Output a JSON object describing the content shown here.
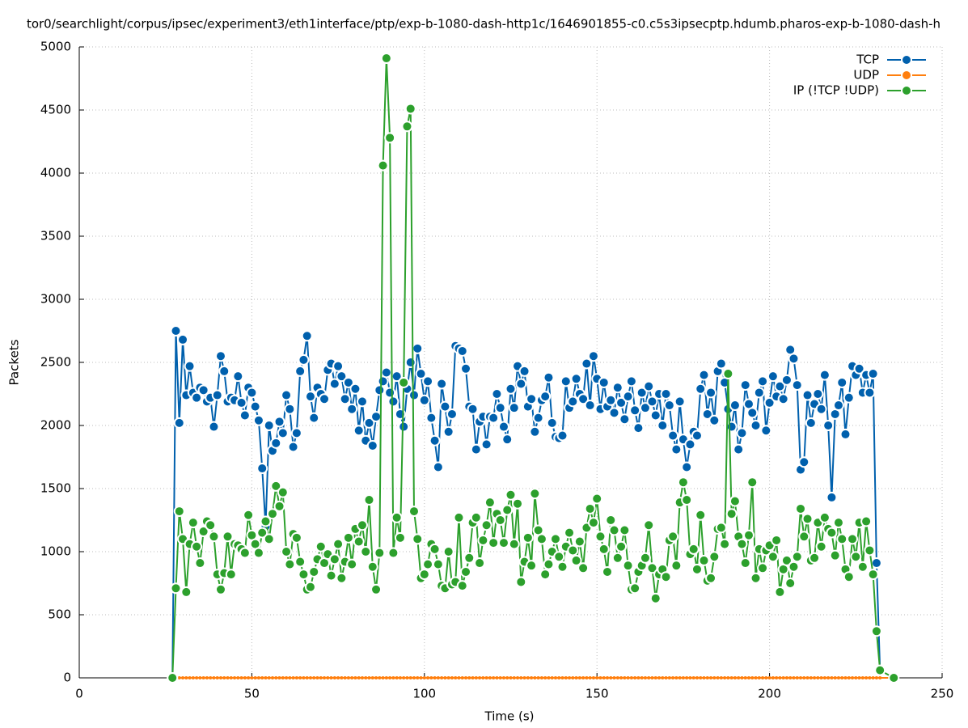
{
  "chart_data": {
    "type": "line",
    "title": "tor0/searchlight/corpus/ipsec/experiment3/eth1interface/ptp/exp-b-1080-dash-http1c/1646901855-c0.c5s3ipsecptp.hdumb.pharos-exp-b-1080-dash-h",
    "xlabel": "Time (s)",
    "ylabel": "Packets",
    "xlim": [
      0,
      250
    ],
    "xticks": [
      0,
      50,
      100,
      150,
      200,
      250
    ],
    "ylim": [
      0,
      5000
    ],
    "yticks": [
      0,
      500,
      1000,
      1500,
      2000,
      2500,
      3000,
      3500,
      4000,
      4500,
      5000
    ],
    "grid": true,
    "legend": "top-right",
    "x": [
      27,
      28,
      29,
      30,
      31,
      32,
      33,
      34,
      35,
      36,
      37,
      38,
      39,
      40,
      41,
      42,
      43,
      44,
      45,
      46,
      47,
      48,
      49,
      50,
      51,
      52,
      53,
      54,
      55,
      56,
      57,
      58,
      59,
      60,
      61,
      62,
      63,
      64,
      65,
      66,
      67,
      68,
      69,
      70,
      71,
      72,
      73,
      74,
      75,
      76,
      77,
      78,
      79,
      80,
      81,
      82,
      83,
      84,
      85,
      86,
      87,
      88,
      89,
      90,
      91,
      92,
      93,
      94,
      95,
      96,
      97,
      98,
      99,
      100,
      101,
      102,
      103,
      104,
      105,
      106,
      107,
      108,
      109,
      110,
      111,
      112,
      113,
      114,
      115,
      116,
      117,
      118,
      119,
      120,
      121,
      122,
      123,
      124,
      125,
      126,
      127,
      128,
      129,
      130,
      131,
      132,
      133,
      134,
      135,
      136,
      137,
      138,
      139,
      140,
      141,
      142,
      143,
      144,
      145,
      146,
      147,
      148,
      149,
      150,
      151,
      152,
      153,
      154,
      155,
      156,
      157,
      158,
      159,
      160,
      161,
      162,
      163,
      164,
      165,
      166,
      167,
      168,
      169,
      170,
      171,
      172,
      173,
      174,
      175,
      176,
      177,
      178,
      179,
      180,
      181,
      182,
      183,
      184,
      185,
      186,
      187,
      188,
      189,
      190,
      191,
      192,
      193,
      194,
      195,
      196,
      197,
      198,
      199,
      200,
      201,
      202,
      203,
      204,
      205,
      206,
      207,
      208,
      209,
      210,
      211,
      212,
      213,
      214,
      215,
      216,
      217,
      218,
      219,
      220,
      221,
      222,
      223,
      224,
      225,
      226,
      227,
      228,
      229,
      230,
      231,
      232,
      236
    ],
    "series": [
      {
        "name": "TCP",
        "color": "#0060ad",
        "values": [
          0,
          2750,
          2020,
          2680,
          2240,
          2470,
          2260,
          2220,
          2300,
          2280,
          2190,
          2220,
          1990,
          2240,
          2550,
          2430,
          2190,
          2220,
          2200,
          2390,
          2180,
          2080,
          2300,
          2260,
          2150,
          2040,
          1660,
          1200,
          2000,
          1800,
          1860,
          2030,
          1940,
          2240,
          2130,
          1830,
          1940,
          2430,
          2520,
          2710,
          2230,
          2060,
          2300,
          2250,
          2210,
          2440,
          2490,
          2330,
          2470,
          2390,
          2210,
          2340,
          2130,
          2290,
          1960,
          2190,
          1880,
          2020,
          1840,
          2070,
          2280,
          2350,
          2420,
          2260,
          2190,
          2390,
          2090,
          1990,
          2290,
          2500,
          2240,
          2610,
          2410,
          2200,
          2350,
          2060,
          1880,
          1670,
          2330,
          2150,
          1950,
          2090,
          2630,
          2610,
          2590,
          2450,
          2150,
          2130,
          1810,
          2030,
          2070,
          1850,
          2070,
          2060,
          2250,
          2140,
          1990,
          1890,
          2290,
          2140,
          2470,
          2330,
          2430,
          2150,
          2210,
          1950,
          2060,
          2200,
          2230,
          2380,
          2020,
          1910,
          1900,
          1920,
          2350,
          2140,
          2190,
          2370,
          2250,
          2210,
          2490,
          2160,
          2550,
          2370,
          2130,
          2340,
          2150,
          2200,
          2100,
          2300,
          2180,
          2050,
          2230,
          2350,
          2120,
          1980,
          2260,
          2140,
          2310,
          2190,
          2080,
          2250,
          2000,
          2250,
          2160,
          1920,
          1810,
          2190,
          1890,
          1670,
          1850,
          1950,
          1920,
          2290,
          2400,
          2090,
          2260,
          2040,
          2430,
          2490,
          2340,
          2130,
          1990,
          2160,
          1810,
          1940,
          2320,
          2170,
          2100,
          2000,
          2260,
          2350,
          1960,
          2180,
          2390,
          2230,
          2310,
          2210,
          2360,
          2600,
          2530,
          2320,
          1650,
          1710,
          2240,
          2020,
          2170,
          2250,
          2130,
          2400,
          2000,
          1430,
          2090,
          2160,
          2340,
          1930,
          2220,
          2470,
          2400,
          2450,
          2260,
          2400,
          2260,
          2410,
          910,
          60,
          null
        ]
      },
      {
        "name": "UDP",
        "color": "#ff7f0e",
        "values": [
          0,
          0,
          0,
          0,
          0,
          0,
          0,
          0,
          0,
          0,
          0,
          0,
          0,
          0,
          0,
          0,
          0,
          0,
          0,
          0,
          0,
          0,
          0,
          0,
          0,
          0,
          0,
          0,
          0,
          0,
          0,
          0,
          0,
          0,
          0,
          0,
          0,
          0,
          0,
          0,
          0,
          0,
          0,
          0,
          0,
          0,
          0,
          0,
          0,
          0,
          0,
          0,
          0,
          0,
          0,
          0,
          0,
          0,
          0,
          0,
          0,
          0,
          0,
          0,
          0,
          0,
          0,
          0,
          0,
          0,
          0,
          0,
          0,
          0,
          0,
          0,
          0,
          0,
          0,
          0,
          0,
          0,
          0,
          0,
          0,
          0,
          0,
          0,
          0,
          0,
          0,
          0,
          0,
          0,
          0,
          0,
          0,
          0,
          0,
          0,
          0,
          0,
          0,
          0,
          0,
          0,
          0,
          0,
          0,
          0,
          0,
          0,
          0,
          0,
          0,
          0,
          0,
          0,
          0,
          0,
          0,
          0,
          0,
          0,
          0,
          0,
          0,
          0,
          0,
          0,
          0,
          0,
          0,
          0,
          0,
          0,
          0,
          0,
          0,
          0,
          0,
          0,
          0,
          0,
          0,
          0,
          0,
          0,
          0,
          0,
          0,
          0,
          0,
          0,
          0,
          0,
          0,
          0,
          0,
          0,
          0,
          0,
          0,
          0,
          0,
          0,
          0,
          0,
          0,
          0,
          0,
          0,
          0,
          0,
          0,
          0,
          0,
          0,
          0,
          0,
          0,
          0,
          0,
          0,
          0,
          0,
          0,
          0,
          0,
          0,
          0,
          0,
          0,
          0,
          0,
          0,
          0,
          0,
          0,
          0,
          0,
          0,
          0,
          0,
          0,
          0,
          0
        ]
      },
      {
        "name": "IP (!TCP  !UDP)",
        "color": "#2ca02c",
        "values": [
          0,
          710,
          1320,
          1100,
          680,
          1060,
          1230,
          1040,
          910,
          1160,
          1240,
          1210,
          1120,
          820,
          700,
          830,
          1120,
          820,
          1060,
          1050,
          1020,
          990,
          1290,
          1130,
          1060,
          990,
          1150,
          1240,
          1100,
          1300,
          1520,
          1360,
          1470,
          1000,
          900,
          1140,
          1110,
          920,
          820,
          700,
          720,
          840,
          940,
          1040,
          910,
          980,
          810,
          940,
          1060,
          790,
          920,
          1110,
          900,
          1180,
          1080,
          1210,
          1000,
          1410,
          880,
          700,
          990,
          4060,
          4910,
          4280,
          990,
          1270,
          1110,
          2340,
          4370,
          4510,
          1320,
          1100,
          790,
          820,
          900,
          1060,
          1020,
          900,
          730,
          710,
          1000,
          740,
          760,
          1270,
          730,
          840,
          950,
          1230,
          1270,
          910,
          1090,
          1210,
          1390,
          1070,
          1300,
          1250,
          1070,
          1330,
          1450,
          1060,
          1380,
          760,
          920,
          1110,
          890,
          1460,
          1170,
          1100,
          820,
          900,
          1000,
          1100,
          960,
          880,
          1040,
          1150,
          1010,
          930,
          1080,
          870,
          1190,
          1340,
          1230,
          1420,
          1120,
          1020,
          840,
          1250,
          1170,
          950,
          1040,
          1170,
          890,
          700,
          710,
          840,
          890,
          950,
          1210,
          870,
          630,
          820,
          860,
          800,
          1090,
          1120,
          890,
          1390,
          1550,
          1410,
          980,
          1020,
          860,
          1290,
          930,
          770,
          790,
          960,
          1180,
          1190,
          1060,
          2410,
          1300,
          1400,
          1120,
          1060,
          910,
          1130,
          1550,
          790,
          1020,
          870,
          1010,
          1050,
          960,
          1090,
          680,
          860,
          930,
          750,
          880,
          960,
          1340,
          1120,
          1260,
          930,
          950,
          1230,
          1040,
          1270,
          1180,
          1150,
          970,
          1230,
          1100,
          860,
          800,
          1100,
          960,
          1230,
          880,
          1240,
          1010,
          820,
          370,
          60,
          0
        ]
      }
    ]
  }
}
